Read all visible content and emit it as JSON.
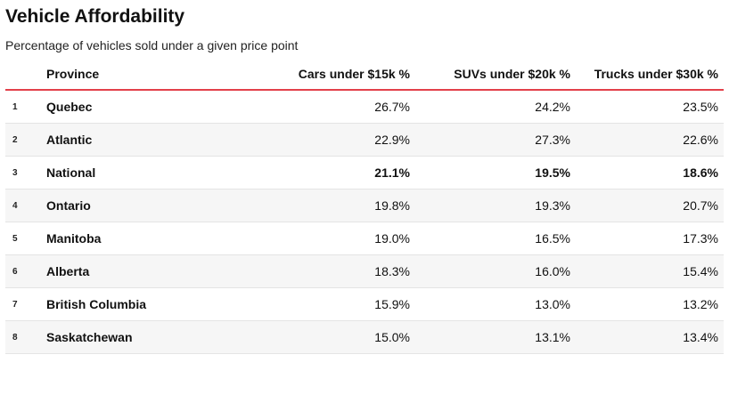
{
  "title": "Vehicle Affordability",
  "subtitle": "Percentage of vehicles sold under a given price point",
  "accent_color": "#e3404a",
  "table": {
    "headers": {
      "rank": "",
      "province": "Province",
      "cars": "Cars under $15k %",
      "suvs": "SUVs under $20k %",
      "trucks": "Trucks under $30k %"
    },
    "rows": [
      {
        "rank": "1",
        "province": "Quebec",
        "cars": "26.7%",
        "suvs": "24.2%",
        "trucks": "23.5%",
        "highlight": false
      },
      {
        "rank": "2",
        "province": "Atlantic",
        "cars": "22.9%",
        "suvs": "27.3%",
        "trucks": "22.6%",
        "highlight": false
      },
      {
        "rank": "3",
        "province": "National",
        "cars": "21.1%",
        "suvs": "19.5%",
        "trucks": "18.6%",
        "highlight": true
      },
      {
        "rank": "4",
        "province": "Ontario",
        "cars": "19.8%",
        "suvs": "19.3%",
        "trucks": "20.7%",
        "highlight": false
      },
      {
        "rank": "5",
        "province": "Manitoba",
        "cars": "19.0%",
        "suvs": "16.5%",
        "trucks": "17.3%",
        "highlight": false
      },
      {
        "rank": "6",
        "province": "Alberta",
        "cars": "18.3%",
        "suvs": "16.0%",
        "trucks": "15.4%",
        "highlight": false
      },
      {
        "rank": "7",
        "province": "British Columbia",
        "cars": "15.9%",
        "suvs": "13.0%",
        "trucks": "13.2%",
        "highlight": false
      },
      {
        "rank": "8",
        "province": "Saskatchewan",
        "cars": "15.0%",
        "suvs": "13.1%",
        "trucks": "13.4%",
        "highlight": false
      }
    ]
  }
}
